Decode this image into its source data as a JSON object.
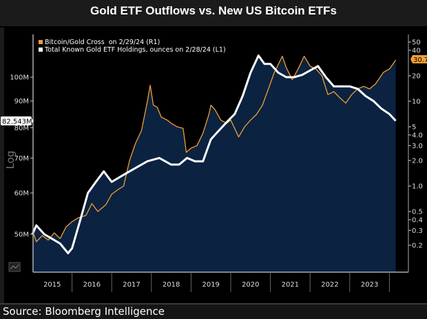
{
  "chart_data": {
    "type": "line",
    "title": "Gold ETF Outflows vs. New US Bitcoin ETFs",
    "source": "Source: Bloomberg Intelligence",
    "scale_label": "Log",
    "x_tick_labels": [
      "2015",
      "2016",
      "2017",
      "2018",
      "2019",
      "2020",
      "2021",
      "2022",
      "2023"
    ],
    "xlim": [
      2015,
      2024.2
    ],
    "grid": false,
    "legend_position": "top-left",
    "left_axis": {
      "scale": "log",
      "ticks": [
        50,
        60,
        70,
        80,
        90,
        100
      ],
      "tick_labels": [
        "50M",
        "60M",
        "70M",
        "80M",
        "90M",
        "100M"
      ],
      "unit": "M ounces",
      "last_value_label": "82.543M"
    },
    "right_axis": {
      "scale": "log",
      "ticks": [
        0.2,
        0.3,
        0.4,
        0.5,
        1.0,
        2.0,
        3.0,
        4.0,
        5,
        10,
        20,
        40,
        50
      ],
      "tick_labels": [
        "0.2",
        "0.3",
        "0.4",
        "0.5",
        "1.0",
        "2.0",
        "3.0",
        "4.0",
        "5",
        "10",
        "20",
        "40",
        "50"
      ],
      "last_value_label": "30.7"
    },
    "area_fill_color": "#0b2240",
    "series": [
      {
        "name": "Bitcoin/Gold Cross  on 2/29/24 (R1)",
        "axis": "right",
        "color": "#f0a030",
        "x": [
          2015.0,
          2015.1,
          2015.25,
          2015.4,
          2015.55,
          2015.7,
          2015.85,
          2016.0,
          2016.15,
          2016.35,
          2016.5,
          2016.65,
          2016.85,
          2017.0,
          2017.15,
          2017.3,
          2017.45,
          2017.6,
          2017.75,
          2017.9,
          2017.97,
          2018.05,
          2018.15,
          2018.25,
          2018.4,
          2018.5,
          2018.65,
          2018.8,
          2018.88,
          2019.0,
          2019.15,
          2019.3,
          2019.45,
          2019.5,
          2019.6,
          2019.75,
          2019.9,
          2020.0,
          2020.2,
          2020.35,
          2020.5,
          2020.65,
          2020.8,
          2020.95,
          2021.1,
          2021.3,
          2021.4,
          2021.55,
          2021.7,
          2021.85,
          2022.0,
          2022.15,
          2022.3,
          2022.45,
          2022.6,
          2022.75,
          2022.9,
          2023.05,
          2023.2,
          2023.35,
          2023.5,
          2023.65,
          2023.85,
          2024.0,
          2024.16
        ],
        "y": [
          0.3,
          0.22,
          0.26,
          0.23,
          0.28,
          0.24,
          0.33,
          0.38,
          0.42,
          0.45,
          0.62,
          0.5,
          0.6,
          0.8,
          0.9,
          1.0,
          2.0,
          3.2,
          4.5,
          10,
          15.5,
          9,
          8.5,
          6.5,
          6,
          5.5,
          5,
          4.8,
          2.5,
          2.8,
          3.0,
          4.2,
          7,
          9,
          8,
          6,
          5.5,
          6,
          3.8,
          5,
          6,
          7,
          9,
          14,
          22,
          34,
          25,
          18,
          24,
          34,
          26,
          24,
          20,
          12,
          13,
          11,
          9.5,
          12,
          14,
          15,
          14,
          16,
          22,
          24,
          30.7
        ]
      },
      {
        "name": "Total Known Gold ETF Holdings, ounces on 2/28/24 (L1)",
        "axis": "left",
        "color": "#ffffff",
        "x": [
          2015.0,
          2015.1,
          2015.3,
          2015.5,
          2015.7,
          2015.9,
          2016.0,
          2016.2,
          2016.4,
          2016.6,
          2016.8,
          2017.0,
          2017.3,
          2017.6,
          2017.9,
          2018.2,
          2018.5,
          2018.7,
          2018.9,
          2019.1,
          2019.3,
          2019.5,
          2019.7,
          2019.9,
          2020.1,
          2020.3,
          2020.5,
          2020.7,
          2020.85,
          2021.0,
          2021.2,
          2021.4,
          2021.6,
          2021.8,
          2022.0,
          2022.2,
          2022.4,
          2022.6,
          2022.8,
          2023.0,
          2023.2,
          2023.4,
          2023.6,
          2023.8,
          2024.0,
          2024.16
        ],
        "y": [
          50,
          52,
          50,
          49,
          48,
          46,
          47,
          53,
          60,
          63,
          66,
          63,
          65,
          67,
          69,
          70,
          68,
          68,
          70,
          69,
          69,
          76,
          79,
          82,
          85,
          92,
          102,
          110,
          106,
          106,
          102,
          100,
          100,
          101,
          103,
          105,
          100,
          96,
          96,
          96,
          95,
          92,
          90,
          87,
          85,
          82.5
        ]
      }
    ]
  }
}
